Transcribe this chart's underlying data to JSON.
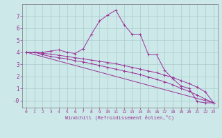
{
  "xlabel": "Windchill (Refroidissement éolien,°C)",
  "bg_color": "#cce8e8",
  "grid_color": "#aacccc",
  "line_color": "#993399",
  "xlim": [
    -0.5,
    23.5
  ],
  "ylim": [
    -0.6,
    8.0
  ],
  "xticks": [
    0,
    1,
    2,
    3,
    4,
    5,
    6,
    7,
    8,
    9,
    10,
    11,
    12,
    13,
    14,
    15,
    16,
    17,
    18,
    19,
    20,
    21,
    22,
    23
  ],
  "yticks": [
    0,
    1,
    2,
    3,
    4,
    5,
    6,
    7
  ],
  "ytick_labels": [
    "-0",
    "1",
    "2",
    "3",
    "4",
    "5",
    "6",
    "7"
  ],
  "lines": [
    {
      "x": [
        0,
        1,
        2,
        3,
        4,
        5,
        6,
        7,
        8,
        9,
        10,
        11,
        12,
        13,
        14,
        15,
        16,
        17,
        18,
        19,
        20,
        21,
        22,
        23
      ],
      "y": [
        4.0,
        4.0,
        4.0,
        4.1,
        4.2,
        4.0,
        3.9,
        4.3,
        5.5,
        6.6,
        7.1,
        7.5,
        6.3,
        5.5,
        5.5,
        3.8,
        3.8,
        2.5,
        1.8,
        1.2,
        1.0,
        -0.1,
        -0.2,
        -0.2
      ],
      "marker": true
    },
    {
      "x": [
        0,
        1,
        2,
        3,
        4,
        5,
        6,
        7,
        8,
        9,
        10,
        11,
        12,
        13,
        14,
        15,
        16,
        17,
        18,
        19,
        20,
        21,
        22,
        23
      ],
      "y": [
        4.0,
        4.0,
        3.9,
        3.85,
        3.75,
        3.65,
        3.55,
        3.45,
        3.35,
        3.25,
        3.15,
        3.05,
        2.9,
        2.75,
        2.6,
        2.45,
        2.3,
        2.1,
        1.9,
        1.65,
        1.4,
        1.1,
        0.7,
        -0.2
      ],
      "marker": true
    },
    {
      "x": [
        0,
        1,
        2,
        3,
        4,
        5,
        6,
        7,
        8,
        9,
        10,
        11,
        12,
        13,
        14,
        15,
        16,
        17,
        18,
        19,
        20,
        21,
        22,
        23
      ],
      "y": [
        4.0,
        4.0,
        3.8,
        3.65,
        3.55,
        3.45,
        3.3,
        3.2,
        3.05,
        2.9,
        2.75,
        2.6,
        2.45,
        2.3,
        2.15,
        1.95,
        1.75,
        1.55,
        1.3,
        1.0,
        0.75,
        0.45,
        0.1,
        -0.2
      ],
      "marker": true
    },
    {
      "x": [
        0,
        23
      ],
      "y": [
        4.0,
        -0.2
      ],
      "marker": false
    }
  ]
}
